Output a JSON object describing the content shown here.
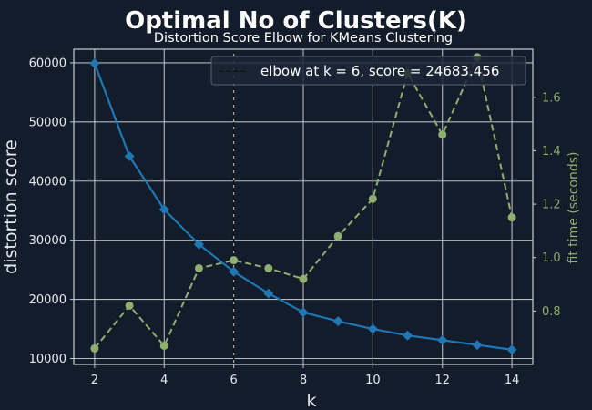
{
  "chart_data": {
    "type": "line",
    "title": "Optimal No of Clusters(K)",
    "subtitle": "Distortion Score Elbow for KMeans Clustering",
    "xlabel": "k",
    "ylabel": "distortion score",
    "y2label": "fit time (seconds)",
    "xlim": [
      1.4,
      14.6
    ],
    "ylim": [
      9000,
      62300
    ],
    "y2lim": [
      0.6,
      1.78
    ],
    "xticks": [
      2,
      4,
      6,
      8,
      10,
      12,
      14
    ],
    "yticks": [
      10000,
      20000,
      30000,
      40000,
      50000,
      60000
    ],
    "y2ticks": [
      0.8,
      1.0,
      1.2,
      1.4,
      1.6
    ],
    "x": [
      2,
      3,
      4,
      5,
      6,
      7,
      8,
      9,
      10,
      11,
      12,
      13,
      14
    ],
    "series": [
      {
        "axis": "left",
        "color": "#1f77b4",
        "values": [
          59900,
          44200,
          35200,
          29300,
          24683,
          21000,
          17800,
          16300,
          15000,
          13900,
          13100,
          12300,
          11500
        ]
      },
      {
        "axis": "right",
        "color": "#8fae6f",
        "values": [
          0.66,
          0.82,
          0.67,
          0.96,
          0.99,
          0.96,
          0.92,
          1.08,
          1.22,
          1.69,
          1.46,
          1.75,
          1.15
        ]
      }
    ],
    "elbow": {
      "k": 6,
      "legend": "elbow at k = 6, score = 24683.456"
    },
    "legend_position": "top-right",
    "grid": true,
    "colors": {
      "background": "#131c2a",
      "grid": "#c8ccd2",
      "text": "#e6e9ee",
      "elbow_line": "#111111"
    }
  }
}
